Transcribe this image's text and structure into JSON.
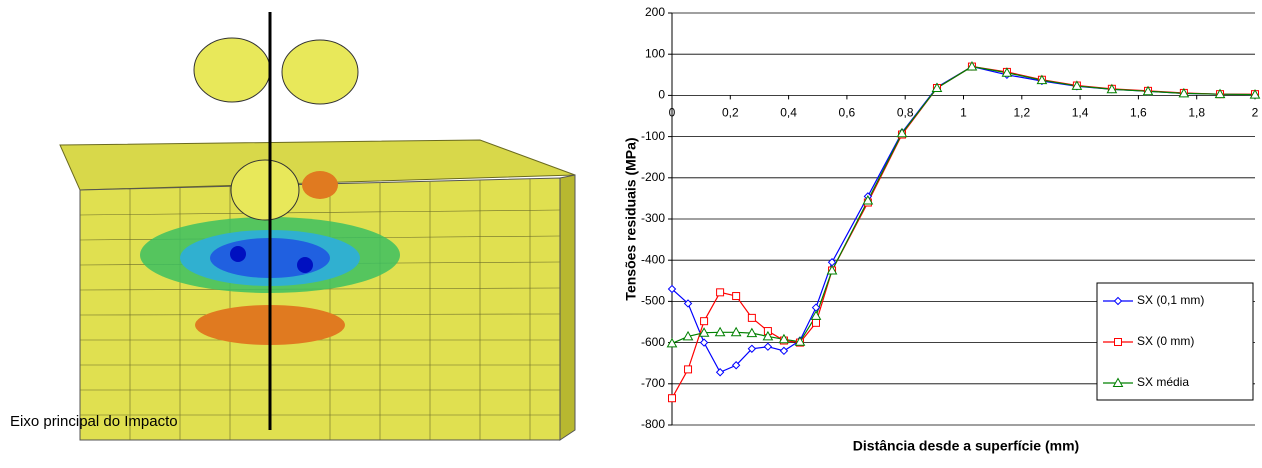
{
  "figure_caption": "Eixo principal do Impacto",
  "chart_data": {
    "type": "line",
    "xlabel": "Distância desde a superfície (mm)",
    "ylabel": "Tensões residuais (MPa)",
    "x": [
      0,
      0.055,
      0.11,
      0.165,
      0.22,
      0.274,
      0.329,
      0.384,
      0.439,
      0.494,
      0.549,
      0.672,
      0.789,
      0.909,
      1.029,
      1.149,
      1.269,
      1.389,
      1.509,
      1.633,
      1.756,
      1.88,
      2.0
    ],
    "series": [
      {
        "name": "SX (0,1 mm)",
        "color": "#0000ff",
        "marker": "diamond",
        "values": [
          -470,
          -505,
          -600,
          -672,
          -655,
          -615,
          -610,
          -620,
          -595,
          -515,
          -405,
          -245,
          -90,
          20,
          70,
          50,
          35,
          22,
          15,
          10,
          5,
          3,
          2
        ]
      },
      {
        "name": "SX (0 mm)",
        "color": "#ff0000",
        "marker": "square",
        "values": [
          -735,
          -665,
          -548,
          -478,
          -487,
          -540,
          -572,
          -595,
          -600,
          -552,
          -425,
          -260,
          -95,
          18,
          70,
          57,
          38,
          24,
          16,
          11,
          6,
          3,
          3
        ]
      },
      {
        "name": "SX média",
        "color": "#008000",
        "marker": "triangle",
        "values": [
          -602,
          -585,
          -576,
          -575,
          -575,
          -577,
          -585,
          -592,
          -598,
          -535,
          -425,
          -255,
          -92,
          18,
          70,
          55,
          37,
          23,
          15,
          10,
          5,
          3,
          2
        ]
      }
    ],
    "xlim": [
      0,
      2
    ],
    "xticks": [
      0,
      {
        "value": 0.2,
        "label": "0,2"
      },
      {
        "value": 0.4,
        "label": "0,4"
      },
      {
        "value": 0.6,
        "label": "0,6"
      },
      {
        "value": 0.8,
        "label": "0,8"
      },
      1,
      {
        "value": 1.2,
        "label": "1,2"
      },
      {
        "value": 1.4,
        "label": "1,4"
      },
      {
        "value": 1.6,
        "label": "1,6"
      },
      {
        "value": 1.8,
        "label": "1,8"
      },
      2
    ],
    "ylim": [
      -800,
      200
    ],
    "yticks": [
      200,
      100,
      0,
      -100,
      -200,
      -300,
      -400,
      -500,
      -600,
      -700,
      -800
    ],
    "grid": true,
    "legend": "lower right"
  }
}
